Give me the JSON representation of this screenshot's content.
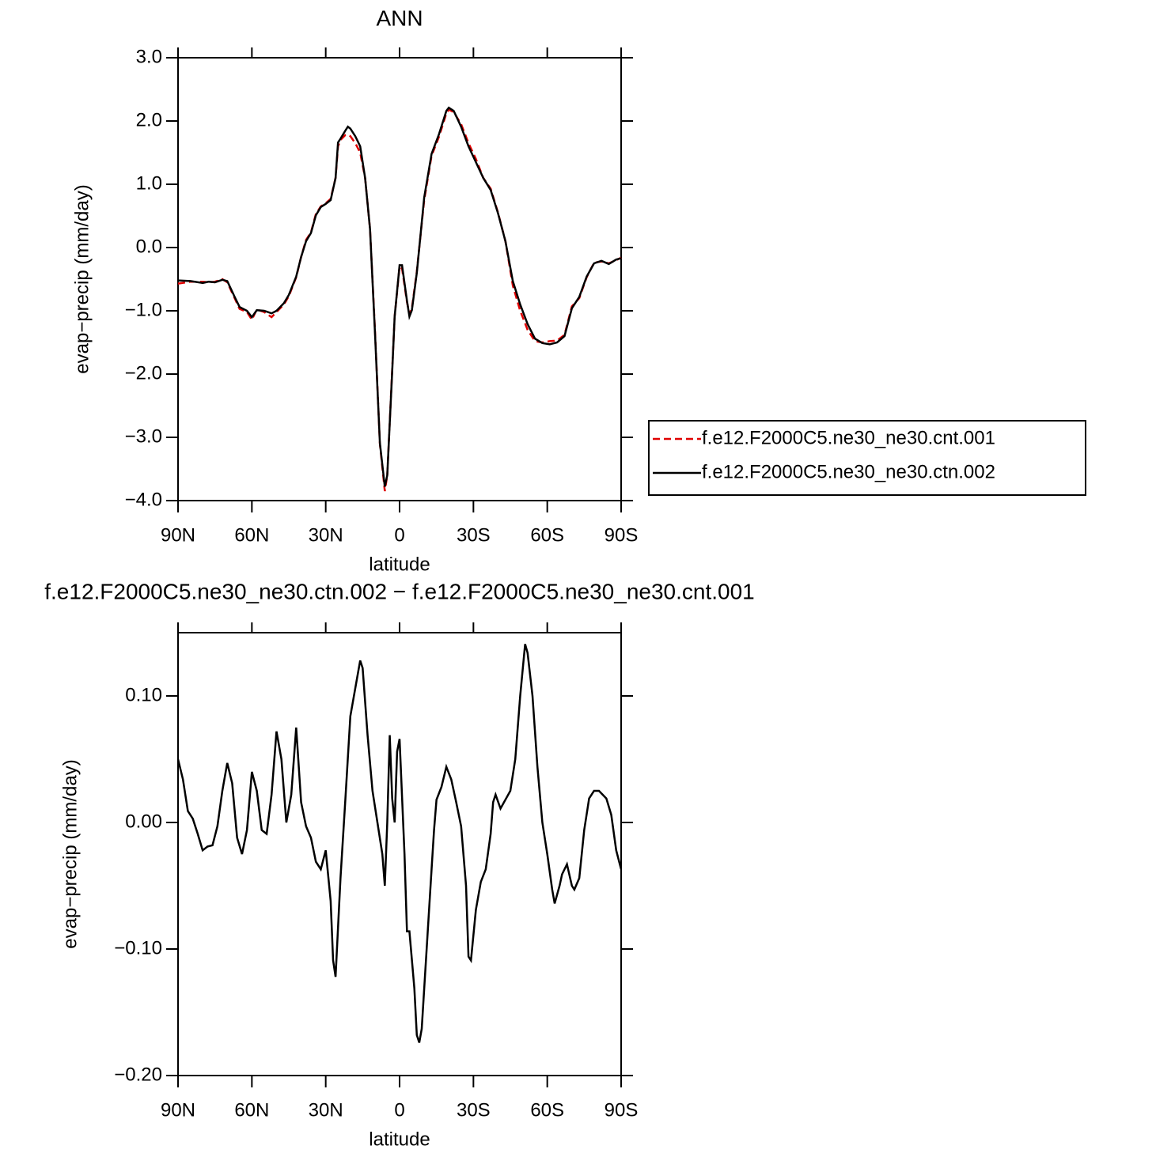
{
  "chart_data": [
    {
      "type": "line",
      "title": "ANN",
      "x_label": "latitude",
      "y_label": "evap−precip (mm/day)",
      "xlim": [
        90,
        -90
      ],
      "xticks": [
        {
          "value": 90,
          "label": "90N"
        },
        {
          "value": 60,
          "label": "60N"
        },
        {
          "value": 30,
          "label": "30N"
        },
        0,
        {
          "value": -30,
          "label": "30S"
        },
        {
          "value": -60,
          "label": "60S"
        },
        {
          "value": -90,
          "label": "90S"
        }
      ],
      "ylim": [
        -4,
        3
      ],
      "yticks": [
        {
          "value": -4,
          "label": "−4.0"
        },
        {
          "value": -3,
          "label": "−3.0"
        },
        {
          "value": -2,
          "label": "−2.0"
        },
        {
          "value": -1,
          "label": "−1.0"
        },
        {
          "value": 0,
          "label": "0.0"
        },
        {
          "value": 1,
          "label": "1.0"
        },
        {
          "value": 2,
          "label": "2.0"
        },
        {
          "value": 3,
          "label": "3.0"
        }
      ],
      "legend": "right",
      "x": [
        90,
        85,
        80,
        77.5,
        75,
        72,
        70,
        67,
        65,
        62,
        60,
        58,
        55,
        52,
        50,
        47,
        45,
        42,
        40,
        38,
        36,
        34,
        32,
        30,
        28,
        26,
        25,
        24,
        22,
        21,
        20,
        18,
        16,
        14,
        12,
        10,
        8,
        6,
        5,
        3,
        2,
        0,
        -1,
        -3,
        -4,
        -5,
        -7,
        -10,
        -13,
        -16,
        -19,
        -20,
        -22,
        -25,
        -28,
        -31,
        -34,
        -37,
        -40,
        -43,
        -46,
        -49,
        -52,
        -55,
        -58,
        -61,
        -64,
        -67,
        -70,
        -73,
        -76,
        -79,
        -82,
        -85,
        -88,
        -90
      ],
      "series": [
        {
          "name": "f.e12.F2000C5.ne30_ne30.cnt.001",
          "color": "#e00000",
          "dash": true,
          "values": [
            -0.57,
            -0.54,
            -0.54,
            -0.55,
            -0.54,
            -0.5,
            -0.55,
            -0.8,
            -0.97,
            -1.02,
            -1.14,
            -0.98,
            -1.02,
            -1.1,
            -1.02,
            -0.9,
            -0.77,
            -0.47,
            -0.15,
            0.12,
            0.24,
            0.53,
            0.65,
            0.7,
            0.77,
            1.1,
            1.6,
            1.7,
            1.78,
            1.78,
            1.76,
            1.65,
            1.5,
            1.1,
            0.29,
            -1.3,
            -3.1,
            -3.85,
            -3.6,
            -1.93,
            -1.09,
            -0.3,
            -0.33,
            -0.86,
            -1.05,
            -0.96,
            -0.38,
            0.75,
            1.45,
            1.75,
            2.12,
            2.18,
            2.14,
            1.95,
            1.65,
            1.4,
            1.1,
            0.93,
            0.55,
            0.1,
            -0.6,
            -1.0,
            -1.3,
            -1.48,
            -1.5,
            -1.48,
            -1.47,
            -1.38,
            -0.93,
            -0.8,
            -0.47,
            -0.24,
            -0.22,
            -0.25,
            -0.2,
            -0.16
          ]
        },
        {
          "name": "f.e12.F2000C5.ne30_ne30.ctn.002",
          "color": "#000000",
          "dash": false,
          "values": [
            -0.52,
            -0.53,
            -0.56,
            -0.54,
            -0.55,
            -0.51,
            -0.53,
            -0.78,
            -0.94,
            -1.0,
            -1.1,
            -0.99,
            -1.0,
            -1.04,
            -1.0,
            -0.88,
            -0.75,
            -0.46,
            -0.15,
            0.1,
            0.23,
            0.51,
            0.64,
            0.69,
            0.75,
            1.1,
            1.66,
            1.72,
            1.85,
            1.91,
            1.88,
            1.76,
            1.6,
            1.1,
            0.29,
            -1.34,
            -3.09,
            -3.78,
            -3.6,
            -1.96,
            -1.09,
            -0.28,
            -0.28,
            -0.84,
            -1.09,
            -0.99,
            -0.4,
            0.79,
            1.48,
            1.79,
            2.16,
            2.21,
            2.16,
            1.91,
            1.6,
            1.35,
            1.1,
            0.91,
            0.54,
            0.1,
            -0.53,
            -0.9,
            -1.21,
            -1.44,
            -1.51,
            -1.53,
            -1.5,
            -1.4,
            -0.96,
            -0.78,
            -0.46,
            -0.25,
            -0.21,
            -0.26,
            -0.19,
            -0.17
          ]
        }
      ]
    },
    {
      "type": "line",
      "title": "f.e12.F2000C5.ne30_ne30.ctn.002 − f.e12.F2000C5.ne30_ne30.cnt.001",
      "x_label": "latitude",
      "y_label": "evap−precip (mm/day)",
      "xlim": [
        90,
        -90
      ],
      "xticks": [
        {
          "value": 90,
          "label": "90N"
        },
        {
          "value": 60,
          "label": "60N"
        },
        {
          "value": 30,
          "label": "30N"
        },
        0,
        {
          "value": -30,
          "label": "30S"
        },
        {
          "value": -60,
          "label": "60S"
        },
        {
          "value": -90,
          "label": "90S"
        }
      ],
      "ylim": [
        -0.2,
        0.15
      ],
      "yticks": [
        {
          "value": -0.2,
          "label": "−0.20"
        },
        {
          "value": -0.1,
          "label": "−0.10"
        },
        {
          "value": 0,
          "label": "0.00"
        },
        {
          "value": 0.1,
          "label": "0.10"
        }
      ],
      "x": [
        90,
        88,
        86,
        84,
        82,
        80,
        78,
        76,
        74,
        72,
        70,
        68,
        66,
        64,
        62,
        60,
        58,
        56,
        54,
        52,
        50,
        48,
        46,
        44,
        42,
        40,
        38,
        36,
        34,
        32,
        30,
        28,
        27,
        26,
        24,
        22,
        20,
        18,
        16,
        15,
        13,
        11,
        9,
        7,
        6,
        5,
        4,
        3,
        2,
        1,
        0,
        -2,
        -3,
        -4,
        -6,
        -7,
        -8,
        -9,
        -11,
        -13,
        -14,
        -15,
        -17,
        -19,
        -21,
        -23,
        -25,
        -27,
        -28,
        -29,
        -31,
        -33,
        -35,
        -37,
        -38,
        -39,
        -41,
        -43,
        -45,
        -47,
        -49,
        -51,
        -52,
        -54,
        -56,
        -58,
        -60,
        -62,
        -63,
        -65,
        -66,
        -68,
        -70,
        -71,
        -73,
        -75,
        -77,
        -79,
        -81,
        -82,
        -84,
        -86,
        -88,
        -90
      ],
      "series": [
        {
          "color": "#000000",
          "dash": false,
          "values": [
            0.05,
            0.034,
            0.009,
            0.003,
            -0.009,
            -0.022,
            -0.019,
            -0.018,
            -0.003,
            0.025,
            0.047,
            0.031,
            -0.012,
            -0.025,
            -0.006,
            0.04,
            0.025,
            -0.006,
            -0.009,
            0.022,
            0.072,
            0.05,
            0.0,
            0.022,
            0.075,
            0.016,
            -0.003,
            -0.012,
            -0.031,
            -0.037,
            -0.022,
            -0.062,
            -0.109,
            -0.122,
            -0.044,
            0.019,
            0.084,
            0.106,
            0.128,
            0.122,
            0.069,
            0.025,
            0.0,
            -0.025,
            -0.05,
            0.0,
            0.069,
            0.019,
            0.0,
            0.056,
            0.066,
            -0.025,
            -0.086,
            -0.086,
            -0.131,
            -0.168,
            -0.174,
            -0.163,
            -0.1,
            -0.037,
            -0.006,
            0.018,
            0.028,
            0.044,
            0.034,
            0.016,
            -0.003,
            -0.05,
            -0.106,
            -0.109,
            -0.069,
            -0.047,
            -0.037,
            -0.009,
            0.016,
            0.022,
            0.011,
            0.018,
            0.025,
            0.05,
            0.1,
            0.141,
            0.134,
            0.1,
            0.044,
            0.0,
            -0.025,
            -0.053,
            -0.064,
            -0.05,
            -0.041,
            -0.033,
            -0.05,
            -0.053,
            -0.044,
            -0.006,
            0.019,
            0.025,
            0.025,
            0.023,
            0.019,
            0.006,
            -0.022,
            -0.037
          ]
        }
      ]
    }
  ]
}
